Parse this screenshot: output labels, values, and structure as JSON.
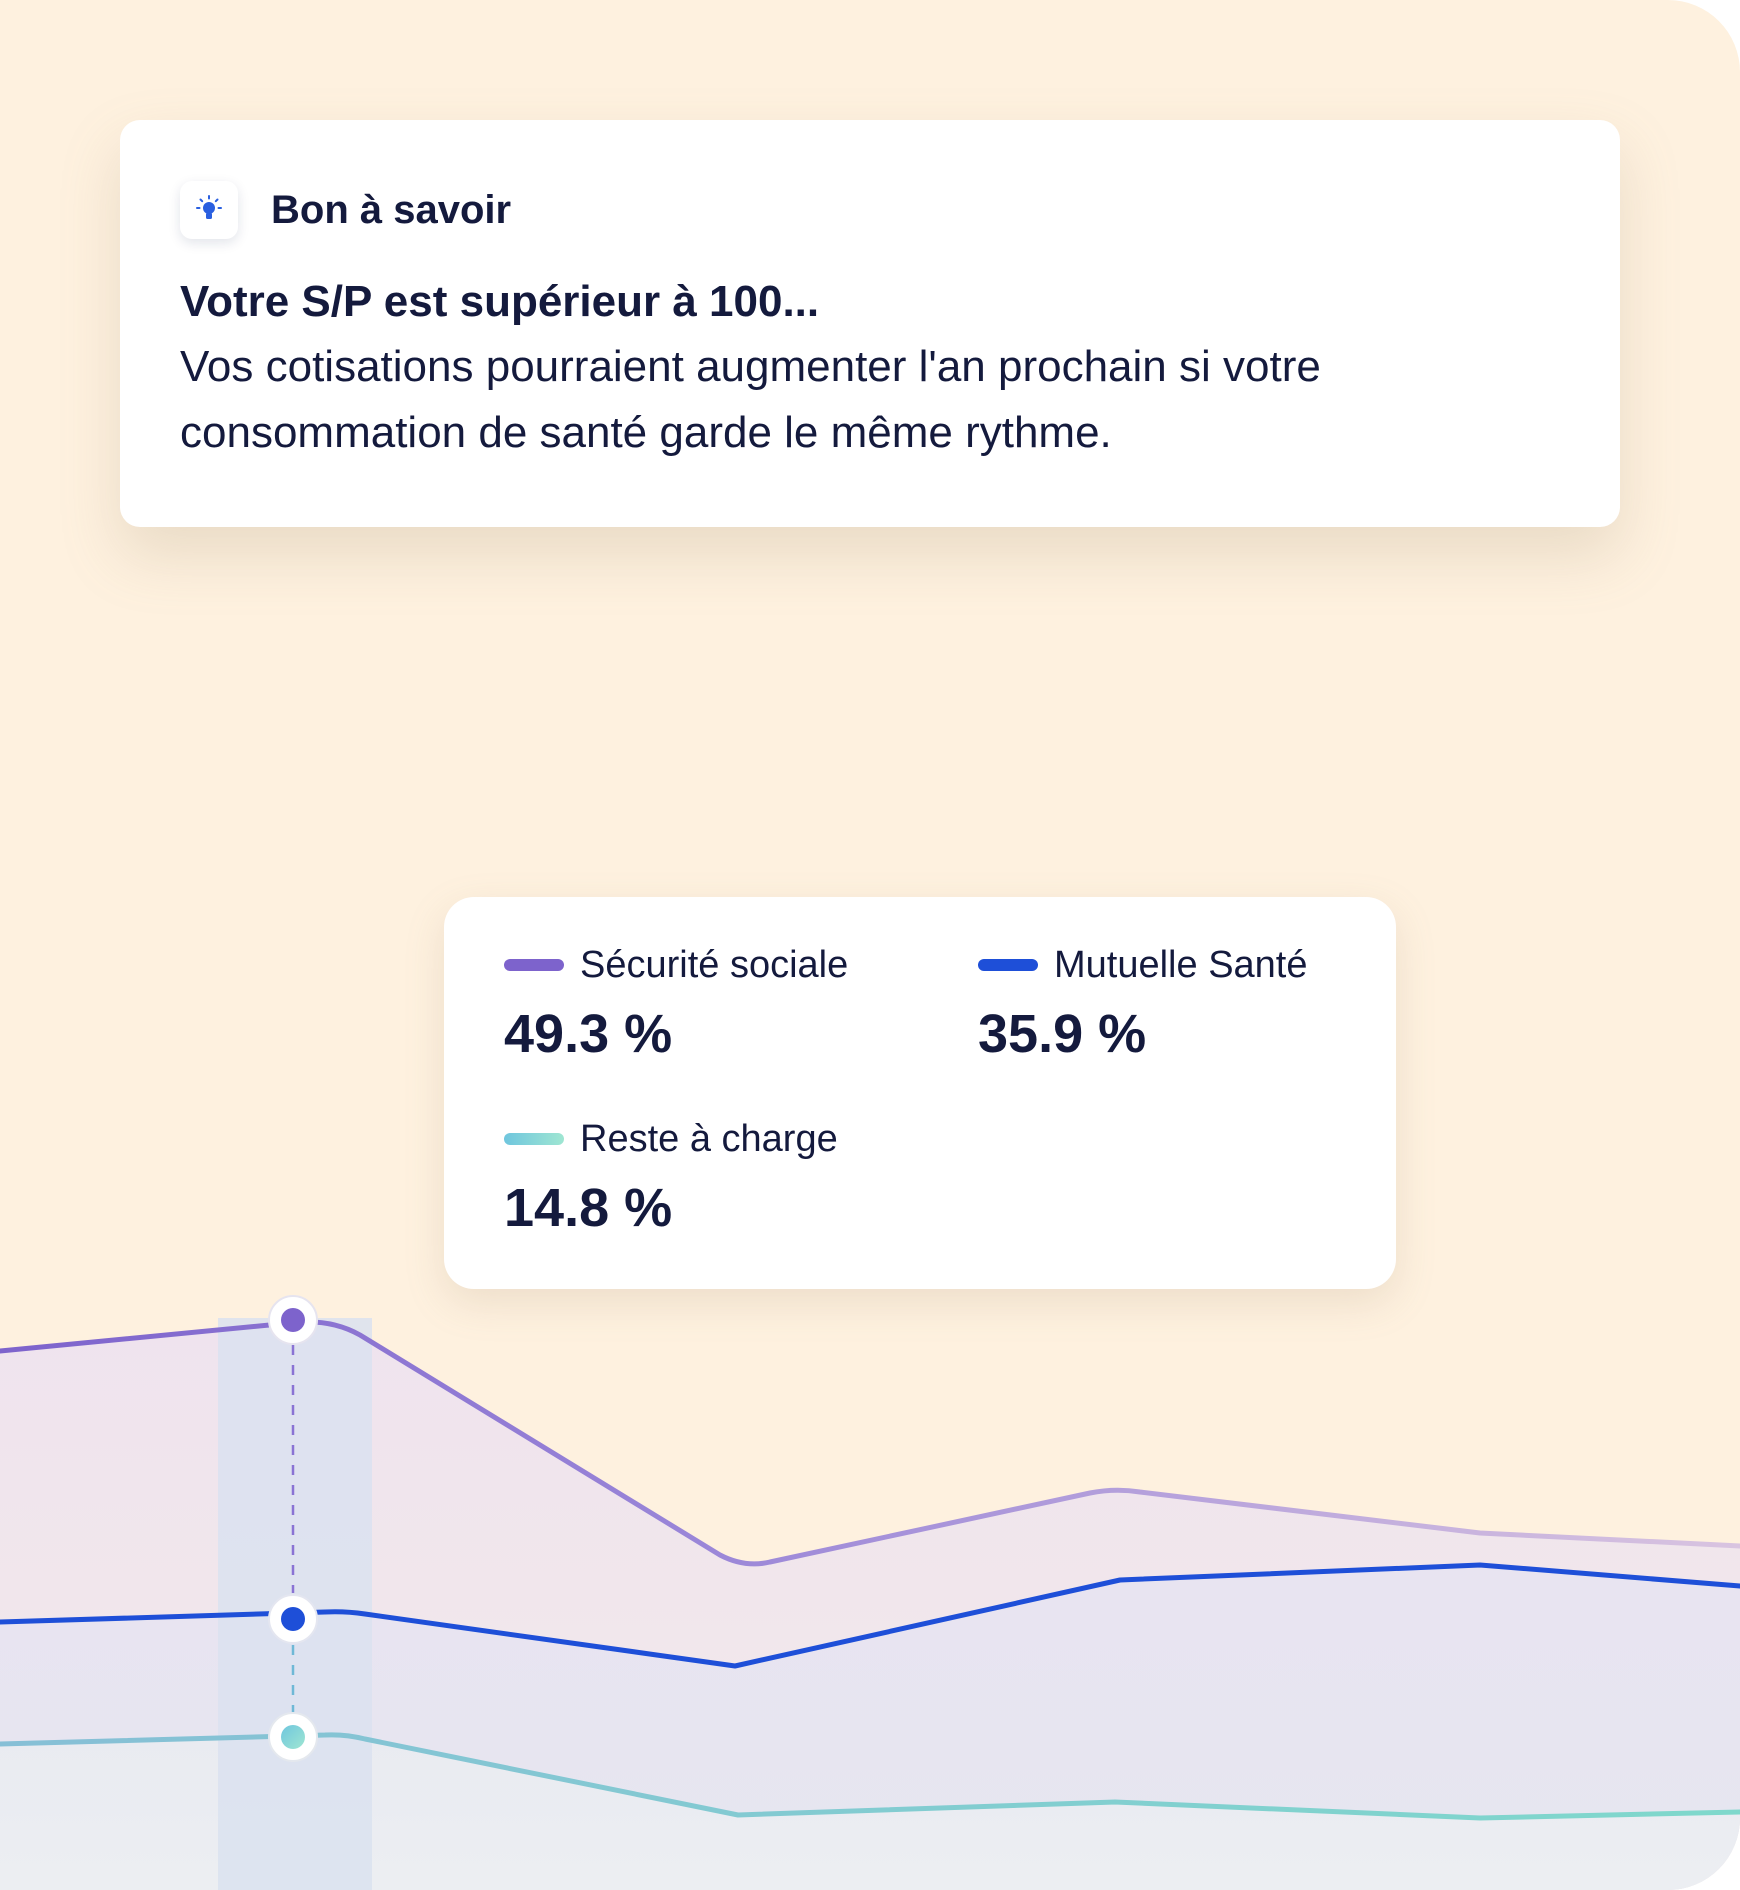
{
  "tip": {
    "icon": "lightbulb-icon",
    "label": "Bon à savoir",
    "heading": "Votre S/P est supérieur à 100...",
    "body": "Vos cotisations pourraient augmenter l'an prochain si votre consommation de santé garde le même rythme."
  },
  "legend": {
    "items": [
      {
        "name": "Sécurité sociale",
        "value": "49.3 %",
        "color": "#7d63cc"
      },
      {
        "name": "Mutuelle Santé",
        "value": "35.9 %",
        "color": "#1e4fd8"
      },
      {
        "name": "Reste à charge",
        "value": "14.8 %",
        "color": "#7fd3cf"
      }
    ]
  },
  "colors": {
    "background": "#fef1df",
    "text": "#141a3d",
    "accent": "#2a5fe0"
  },
  "chart_data": {
    "type": "area",
    "selected_index": 0,
    "series": [
      {
        "name": "Sécurité sociale",
        "color": "#7d63cc",
        "fade_color": "#d9c4e0",
        "values": [
          49.3,
          22,
          31,
          26,
          25
        ]
      },
      {
        "name": "Mutuelle Santé",
        "color": "#1e4fd8",
        "values": [
          35.9,
          23,
          35,
          36.5,
          34
        ]
      },
      {
        "name": "Reste à charge",
        "color": "#7fd3cf",
        "values": [
          14.8,
          6.5,
          8,
          6.5,
          7
        ]
      }
    ]
  }
}
